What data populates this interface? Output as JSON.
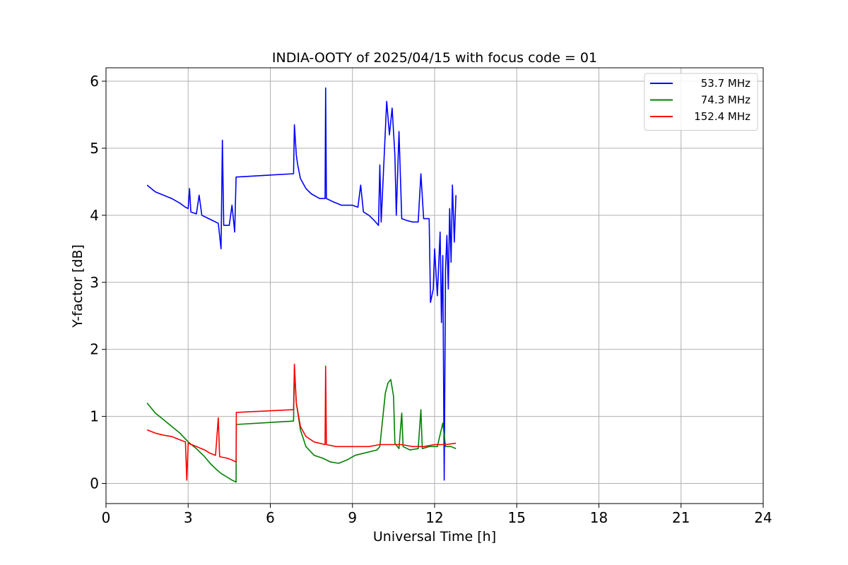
{
  "chart_data": {
    "type": "line",
    "title": "INDIA-OOTY of 2025/04/15 with focus code = 01",
    "xlabel": "Universal Time [h]",
    "ylabel": "Y-factor [dB]",
    "xlim": [
      0,
      24
    ],
    "ylim": [
      -0.3,
      6.2
    ],
    "xticks": [
      0,
      3,
      6,
      9,
      12,
      15,
      18,
      21,
      24
    ],
    "yticks": [
      0,
      1,
      2,
      3,
      4,
      5,
      6
    ],
    "grid": true,
    "legend_position": "top-right",
    "series": [
      {
        "name": "53.7 MHz",
        "color": "#0000ff",
        "points": [
          [
            1.5,
            4.45
          ],
          [
            1.8,
            4.35
          ],
          [
            2.1,
            4.3
          ],
          [
            2.4,
            4.25
          ],
          [
            2.7,
            4.18
          ],
          [
            2.9,
            4.12
          ],
          [
            3.0,
            4.1
          ],
          [
            3.05,
            4.4
          ],
          [
            3.1,
            4.05
          ],
          [
            3.3,
            4.02
          ],
          [
            3.4,
            4.3
          ],
          [
            3.5,
            4.0
          ],
          [
            3.7,
            3.96
          ],
          [
            3.9,
            3.92
          ],
          [
            4.1,
            3.88
          ],
          [
            4.2,
            3.5
          ],
          [
            4.25,
            5.12
          ],
          [
            4.3,
            3.85
          ],
          [
            4.5,
            3.85
          ],
          [
            4.6,
            4.15
          ],
          [
            4.7,
            3.75
          ],
          [
            4.75,
            4.57
          ],
          [
            6.85,
            4.62
          ],
          [
            6.88,
            5.35
          ],
          [
            6.95,
            4.9
          ],
          [
            7.0,
            4.75
          ],
          [
            7.1,
            4.55
          ],
          [
            7.3,
            4.4
          ],
          [
            7.5,
            4.32
          ],
          [
            7.8,
            4.25
          ],
          [
            8.0,
            4.25
          ],
          [
            8.02,
            5.9
          ],
          [
            8.05,
            4.25
          ],
          [
            8.3,
            4.2
          ],
          [
            8.6,
            4.15
          ],
          [
            9.0,
            4.15
          ],
          [
            9.2,
            4.12
          ],
          [
            9.3,
            4.45
          ],
          [
            9.4,
            4.05
          ],
          [
            9.6,
            4.0
          ],
          [
            9.8,
            3.92
          ],
          [
            9.95,
            3.85
          ],
          [
            10.0,
            4.75
          ],
          [
            10.05,
            3.9
          ],
          [
            10.15,
            4.8
          ],
          [
            10.25,
            5.7
          ],
          [
            10.35,
            5.2
          ],
          [
            10.45,
            5.6
          ],
          [
            10.55,
            4.9
          ],
          [
            10.6,
            4.0
          ],
          [
            10.7,
            5.25
          ],
          [
            10.8,
            3.95
          ],
          [
            11.0,
            3.92
          ],
          [
            11.2,
            3.9
          ],
          [
            11.4,
            3.9
          ],
          [
            11.5,
            4.62
          ],
          [
            11.6,
            3.95
          ],
          [
            11.8,
            3.95
          ],
          [
            11.85,
            2.7
          ],
          [
            11.95,
            2.9
          ],
          [
            12.0,
            3.5
          ],
          [
            12.1,
            2.8
          ],
          [
            12.2,
            3.75
          ],
          [
            12.25,
            2.4
          ],
          [
            12.3,
            3.4
          ],
          [
            12.35,
            0.05
          ],
          [
            12.4,
            3.2
          ],
          [
            12.45,
            3.7
          ],
          [
            12.5,
            2.9
          ],
          [
            12.55,
            4.1
          ],
          [
            12.6,
            3.3
          ],
          [
            12.65,
            4.45
          ],
          [
            12.72,
            3.6
          ],
          [
            12.78,
            4.3
          ]
        ]
      },
      {
        "name": "74.3 MHz",
        "color": "#008000",
        "points": [
          [
            1.5,
            1.2
          ],
          [
            1.8,
            1.05
          ],
          [
            2.1,
            0.95
          ],
          [
            2.4,
            0.85
          ],
          [
            2.7,
            0.75
          ],
          [
            3.0,
            0.62
          ],
          [
            3.3,
            0.52
          ],
          [
            3.6,
            0.4
          ],
          [
            3.8,
            0.3
          ],
          [
            4.0,
            0.22
          ],
          [
            4.2,
            0.15
          ],
          [
            4.4,
            0.1
          ],
          [
            4.6,
            0.05
          ],
          [
            4.75,
            0.02
          ],
          [
            4.76,
            0.88
          ],
          [
            6.85,
            0.93
          ],
          [
            6.88,
            1.7
          ],
          [
            6.95,
            1.2
          ],
          [
            7.1,
            0.8
          ],
          [
            7.3,
            0.55
          ],
          [
            7.6,
            0.42
          ],
          [
            7.9,
            0.38
          ],
          [
            8.2,
            0.32
          ],
          [
            8.5,
            0.3
          ],
          [
            8.8,
            0.35
          ],
          [
            9.1,
            0.42
          ],
          [
            9.4,
            0.45
          ],
          [
            9.7,
            0.48
          ],
          [
            9.9,
            0.5
          ],
          [
            10.0,
            0.55
          ],
          [
            10.1,
            0.95
          ],
          [
            10.2,
            1.35
          ],
          [
            10.3,
            1.5
          ],
          [
            10.4,
            1.55
          ],
          [
            10.5,
            1.3
          ],
          [
            10.55,
            0.6
          ],
          [
            10.7,
            0.52
          ],
          [
            10.8,
            1.05
          ],
          [
            10.85,
            0.55
          ],
          [
            11.1,
            0.5
          ],
          [
            11.4,
            0.52
          ],
          [
            11.5,
            1.1
          ],
          [
            11.55,
            0.52
          ],
          [
            11.8,
            0.55
          ],
          [
            12.1,
            0.55
          ],
          [
            12.3,
            0.9
          ],
          [
            12.4,
            0.55
          ],
          [
            12.6,
            0.55
          ],
          [
            12.78,
            0.52
          ]
        ]
      },
      {
        "name": "152.4 MHz",
        "color": "#ff0000",
        "points": [
          [
            1.5,
            0.8
          ],
          [
            1.8,
            0.75
          ],
          [
            2.1,
            0.72
          ],
          [
            2.4,
            0.7
          ],
          [
            2.7,
            0.65
          ],
          [
            2.9,
            0.62
          ],
          [
            2.95,
            0.05
          ],
          [
            3.0,
            0.6
          ],
          [
            3.3,
            0.55
          ],
          [
            3.6,
            0.5
          ],
          [
            3.8,
            0.45
          ],
          [
            4.0,
            0.42
          ],
          [
            4.1,
            0.98
          ],
          [
            4.15,
            0.4
          ],
          [
            4.4,
            0.38
          ],
          [
            4.6,
            0.35
          ],
          [
            4.75,
            0.32
          ],
          [
            4.76,
            1.06
          ],
          [
            6.85,
            1.1
          ],
          [
            6.88,
            1.78
          ],
          [
            6.95,
            1.2
          ],
          [
            7.1,
            0.85
          ],
          [
            7.3,
            0.7
          ],
          [
            7.6,
            0.62
          ],
          [
            8.0,
            0.58
          ],
          [
            8.02,
            1.75
          ],
          [
            8.05,
            0.58
          ],
          [
            8.4,
            0.55
          ],
          [
            8.8,
            0.55
          ],
          [
            9.2,
            0.55
          ],
          [
            9.6,
            0.55
          ],
          [
            10.0,
            0.58
          ],
          [
            10.4,
            0.58
          ],
          [
            10.8,
            0.58
          ],
          [
            11.2,
            0.55
          ],
          [
            11.6,
            0.55
          ],
          [
            12.0,
            0.58
          ],
          [
            12.4,
            0.58
          ],
          [
            12.78,
            0.6
          ]
        ]
      }
    ]
  }
}
